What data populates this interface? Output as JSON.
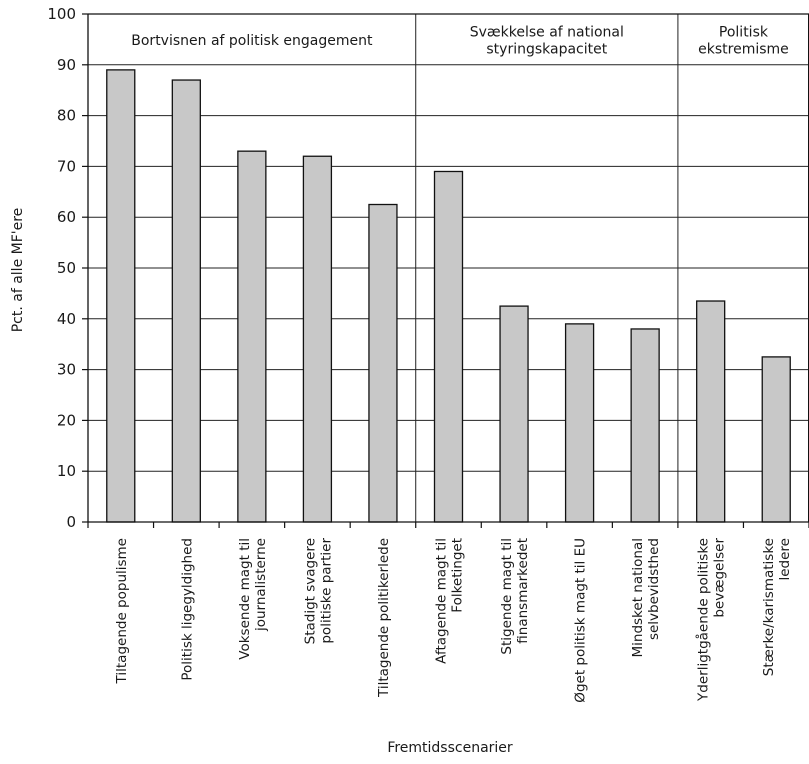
{
  "chart_data": {
    "type": "bar",
    "categories": [
      "Tiltagende populisme",
      "Politisk ligegyldighed",
      "Voksende magt til|journalisterne",
      "Stadigt svagere|politiske partier",
      "Tiltagende politikerlede",
      "Aftagende magt til|Folketinget",
      "Stigende magt til|finansmarkedet",
      "Øget politisk magt til EU",
      "Mindsket national|selvbevidsthed",
      "Yderligtgående politiske|bevægelser",
      "Stærke/karismatiske|ledere"
    ],
    "values": [
      89,
      87,
      73,
      72,
      62.5,
      69,
      42.5,
      39,
      38,
      43.5,
      32.5
    ],
    "groups": [
      {
        "label_lines": [
          "Bortvisnen af politisk engagement"
        ],
        "count": 5
      },
      {
        "label_lines": [
          "Svækkelse af national",
          "styringskapacitet"
        ],
        "count": 4
      },
      {
        "label_lines": [
          "Politisk",
          "ekstremisme"
        ],
        "count": 2
      }
    ],
    "xlabel": "Fremtidsscenarier",
    "ylabel": "Pct. af alle MF'ere",
    "ylim": [
      0,
      100
    ],
    "yticks": [
      "0",
      "10",
      "20",
      "30",
      "40",
      "50",
      "60",
      "70",
      "80",
      "90",
      "100"
    ],
    "grid": true,
    "bar_color": "#c8c8c8"
  }
}
